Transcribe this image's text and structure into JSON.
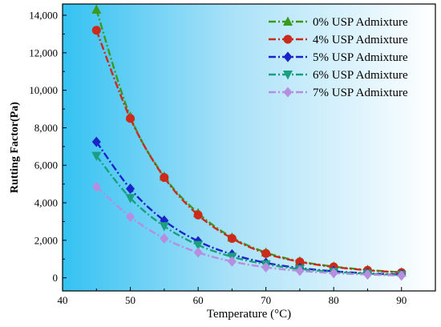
{
  "chart_data": {
    "type": "line",
    "xlabel": "Temperature (°C)",
    "ylabel": "Rutting Factor(Pa)",
    "xlim": [
      40,
      95
    ],
    "ylim": [
      -700,
      14600
    ],
    "x_ticks": [
      40,
      50,
      60,
      70,
      80,
      90
    ],
    "y_ticks": [
      0,
      2000,
      4000,
      6000,
      8000,
      10000,
      12000,
      14000
    ],
    "x_tick_labels": [
      "40",
      "50",
      "60",
      "70",
      "80",
      "90"
    ],
    "y_tick_labels": [
      "0",
      "2,000",
      "4,000",
      "6,000",
      "8,000",
      "10,000",
      "12,000",
      "14,000"
    ],
    "grid": false,
    "legend_position": "top-right",
    "background": "horizontal gradient from light blue (left) to white (right)",
    "x": [
      45,
      50,
      55,
      60,
      65,
      70,
      75,
      80,
      85,
      90
    ],
    "series": [
      {
        "name": "0% USP Admixture",
        "color": "#3a9a1e",
        "marker": "triangle-up",
        "values": [
          14300,
          8600,
          5400,
          3450,
          2150,
          1350,
          880,
          600,
          420,
          290
        ]
      },
      {
        "name": "4% USP Admixture",
        "color": "#cc2a1a",
        "marker": "circle",
        "values": [
          13200,
          8500,
          5350,
          3350,
          2100,
          1300,
          850,
          580,
          400,
          280
        ]
      },
      {
        "name": "5% USP Admixture",
        "color": "#1a22c8",
        "marker": "diamond",
        "values": [
          7250,
          4750,
          3050,
          1950,
          1250,
          800,
          520,
          350,
          240,
          170
        ]
      },
      {
        "name": "6% USP Admixture",
        "color": "#1aa080",
        "marker": "triangle-down",
        "values": [
          6500,
          4250,
          2750,
          1750,
          1120,
          720,
          470,
          320,
          220,
          150
        ]
      },
      {
        "name": "7% USP Admixture",
        "color": "#b58ee0",
        "marker": "diamond",
        "values": [
          4850,
          3250,
          2100,
          1350,
          870,
          560,
          370,
          250,
          175,
          120
        ]
      }
    ]
  }
}
